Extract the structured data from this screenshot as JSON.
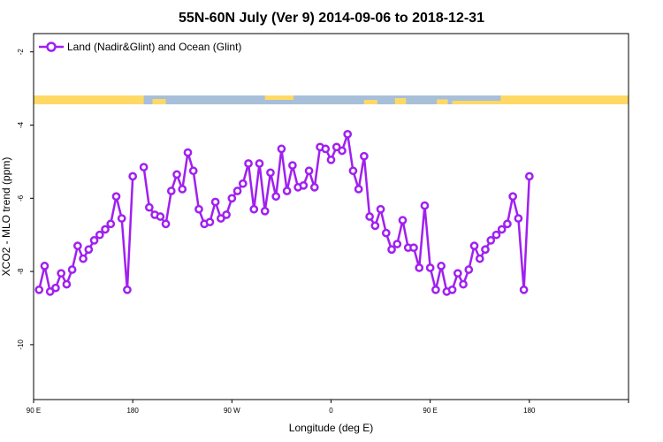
{
  "chart_data": {
    "type": "line",
    "title": "55N-60N July (Ver 9)   2014-09-06 to 2018-12-31",
    "xlabel": "Longitude (deg E)",
    "ylabel": "XCO2 - MLO trend (ppm)",
    "xlim": [
      -90,
      180
    ],
    "ylim": [
      -11.5,
      -1.5
    ],
    "x_ticks": [
      {
        "value": -90,
        "label": "90 E"
      },
      {
        "value": -45,
        "label": "180"
      },
      {
        "value": 0,
        "label": "90 W"
      },
      {
        "value": 45,
        "label": "0"
      },
      {
        "value": 90,
        "label": "90 E"
      },
      {
        "value": 135,
        "label": "180"
      }
    ],
    "y_ticks": [
      -2,
      -4,
      -6,
      -8,
      -10
    ],
    "legend": {
      "position": "top-left"
    },
    "land_ocean_strip": {
      "land_color": "#FFD966",
      "ocean_color": "#A8BFD9"
    },
    "series": [
      {
        "name": "Land (Nadir&Glint) and Ocean (Glint)",
        "color": "#A020F0",
        "x": [
          -87.5,
          -85,
          -82.5,
          -80,
          -77.5,
          -75,
          -72.5,
          -70,
          -67.5,
          -65,
          -62.5,
          -60,
          -57.5,
          -55,
          -52.5,
          -50,
          -47.5,
          -45,
          -42.5,
          -40,
          -37.5,
          -35,
          -32.5,
          -30,
          -27.5,
          -25,
          -22.5,
          -20,
          -17.5,
          -15,
          -12.5,
          -10,
          -7.5,
          -5,
          -2.5,
          0,
          2.5,
          5,
          7.5,
          10,
          12.5,
          15,
          17.5,
          20,
          22.5,
          25,
          27.5,
          30,
          32.5,
          35,
          37.5,
          40,
          42.5,
          45,
          47.5,
          50,
          52.5,
          55,
          57.5,
          60,
          62.5,
          65,
          67.5,
          70,
          72.5,
          75,
          77.5,
          80,
          82.5,
          85,
          87.5,
          90,
          92.5,
          95,
          97.5,
          100,
          102.5,
          105,
          107.5,
          110,
          112.5,
          115,
          117.5,
          120,
          122.5,
          125,
          127.5,
          130,
          132.5,
          135
        ],
        "y": [
          -8.5,
          -7.85,
          -8.55,
          -8.45,
          -8.05,
          -8.35,
          -7.95,
          -7.3,
          -7.65,
          -7.4,
          -7.15,
          -7.0,
          -6.85,
          -6.7,
          -5.95,
          -6.55,
          -8.5,
          -5.4,
          null,
          -5.15,
          -6.25,
          -6.45,
          -6.5,
          -6.7,
          -5.8,
          -5.35,
          -5.75,
          -4.75,
          -5.25,
          -6.3,
          -6.7,
          -6.65,
          -6.1,
          -6.55,
          -6.45,
          -6.0,
          -5.8,
          -5.6,
          -5.05,
          -6.3,
          -5.05,
          -6.35,
          -5.3,
          -5.95,
          -4.65,
          -5.8,
          -5.1,
          -5.7,
          -5.65,
          -5.25,
          -5.7,
          -4.6,
          -4.65,
          -4.95,
          -4.6,
          -4.7,
          -4.25,
          -5.25,
          -5.75,
          -4.85,
          -6.5,
          -6.75,
          -6.3,
          -6.95,
          -7.4,
          -7.25,
          -6.6,
          -7.35,
          -7.35,
          -7.9,
          -6.2,
          -7.9,
          -8.5,
          -7.85,
          -8.55,
          -8.5,
          -8.05,
          -8.35,
          -7.95,
          -7.3,
          -7.65,
          -7.4,
          -7.15,
          -7.0,
          -6.85,
          -6.7,
          -5.95,
          -6.55,
          -8.5,
          -5.4
        ]
      }
    ]
  }
}
